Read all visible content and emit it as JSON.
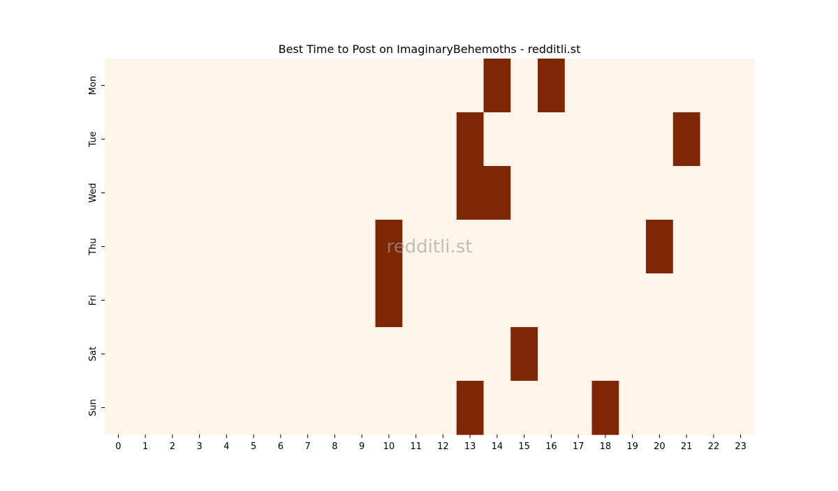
{
  "chart_data": {
    "type": "heatmap",
    "title": "Best Time to Post on ImaginaryBehemoths - redditli.st",
    "xlabel": "",
    "ylabel": "",
    "x_categories": [
      "0",
      "1",
      "2",
      "3",
      "4",
      "5",
      "6",
      "7",
      "8",
      "9",
      "10",
      "11",
      "12",
      "13",
      "14",
      "15",
      "16",
      "17",
      "18",
      "19",
      "20",
      "21",
      "22",
      "23"
    ],
    "y_categories": [
      "Mon",
      "Tue",
      "Wed",
      "Thu",
      "Fri",
      "Sat",
      "Sun"
    ],
    "values": [
      [
        0,
        0,
        0,
        0,
        0,
        0,
        0,
        0,
        0,
        0,
        0,
        0,
        0,
        0,
        1,
        0,
        1,
        0,
        0,
        0,
        0,
        0,
        0,
        0
      ],
      [
        0,
        0,
        0,
        0,
        0,
        0,
        0,
        0,
        0,
        0,
        0,
        0,
        0,
        1,
        0,
        0,
        0,
        0,
        0,
        0,
        0,
        1,
        0,
        0
      ],
      [
        0,
        0,
        0,
        0,
        0,
        0,
        0,
        0,
        0,
        0,
        0,
        0,
        0,
        1,
        1,
        0,
        0,
        0,
        0,
        0,
        0,
        0,
        0,
        0
      ],
      [
        0,
        0,
        0,
        0,
        0,
        0,
        0,
        0,
        0,
        0,
        1,
        0,
        0,
        0,
        0,
        0,
        0,
        0,
        0,
        0,
        1,
        0,
        0,
        0
      ],
      [
        0,
        0,
        0,
        0,
        0,
        0,
        0,
        0,
        0,
        0,
        1,
        0,
        0,
        0,
        0,
        0,
        0,
        0,
        0,
        0,
        0,
        0,
        0,
        0
      ],
      [
        0,
        0,
        0,
        0,
        0,
        0,
        0,
        0,
        0,
        0,
        0,
        0,
        0,
        0,
        0,
        1,
        0,
        0,
        0,
        0,
        0,
        0,
        0,
        0
      ],
      [
        0,
        0,
        0,
        0,
        0,
        0,
        0,
        0,
        0,
        0,
        0,
        0,
        0,
        1,
        0,
        0,
        0,
        0,
        1,
        0,
        0,
        0,
        0,
        0
      ]
    ],
    "colormap": {
      "low": "#fef4e9",
      "high": "#7f2704"
    },
    "watermark": "redditli.st",
    "grid": false,
    "legend": "none"
  }
}
